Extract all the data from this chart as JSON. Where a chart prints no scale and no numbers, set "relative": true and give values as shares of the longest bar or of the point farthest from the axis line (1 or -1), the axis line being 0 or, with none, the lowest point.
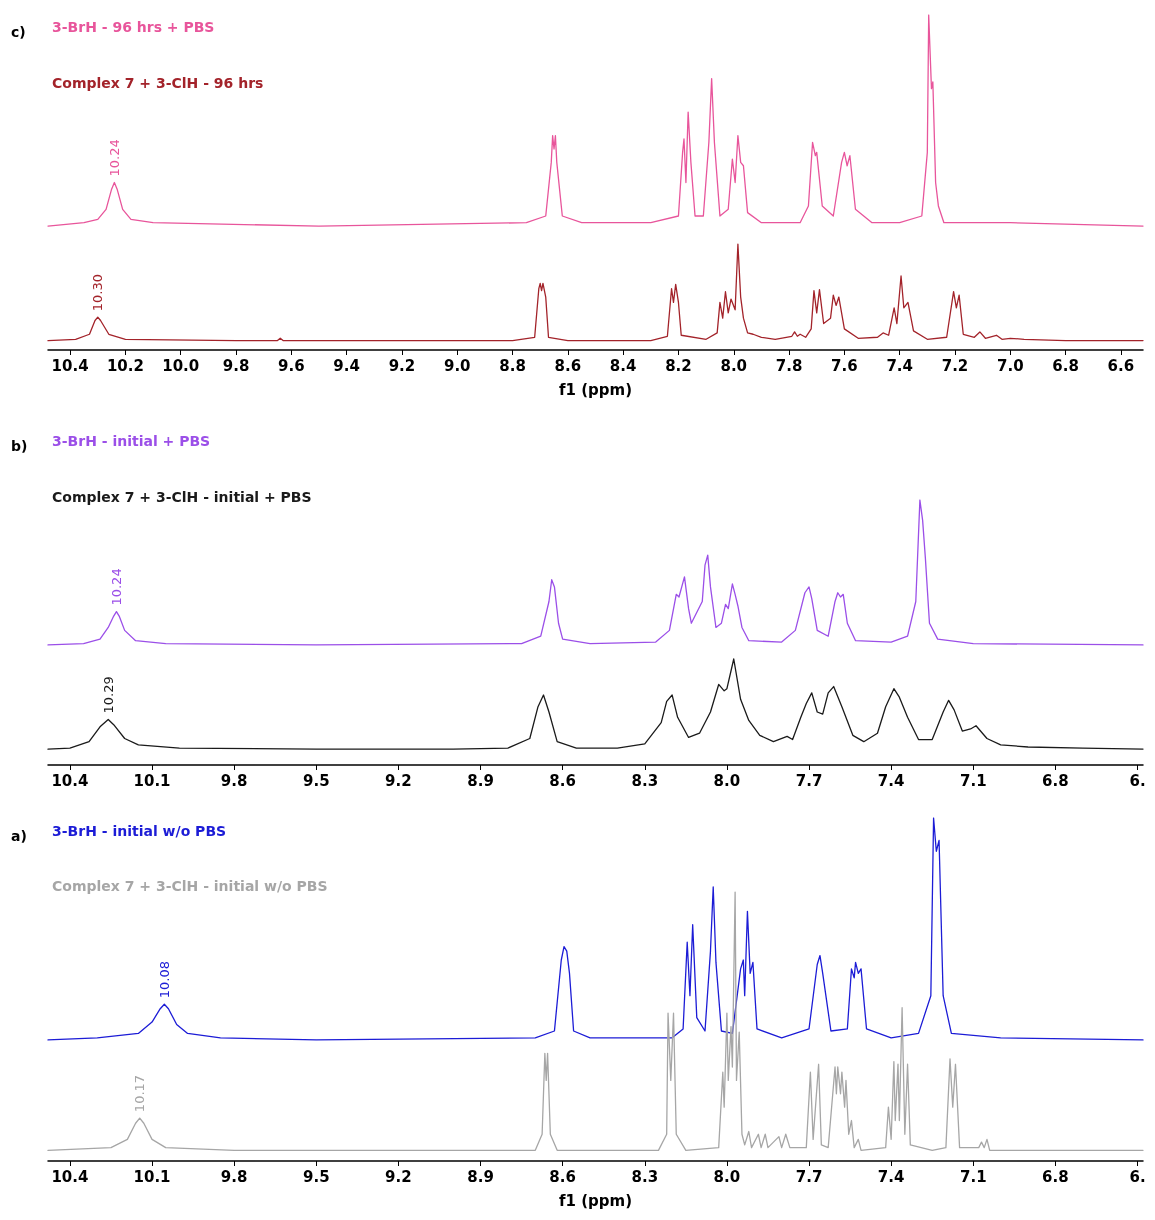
{
  "chart_data": [
    {
      "type": "line",
      "title": "c)",
      "relative": true,
      "xlim": [
        10.48,
        6.52
      ],
      "xlabel": "f1 (ppm)",
      "marker": "none",
      "line_style": "solid",
      "xticks": [
        10.4,
        10.2,
        {
          "value": 10,
          "label": "10.0"
        },
        9.8,
        9.6,
        9.4,
        9.2,
        {
          "value": 9,
          "label": "9.0"
        },
        8.8,
        8.6,
        8.4,
        8.2,
        {
          "value": 8,
          "label": "8.0"
        },
        7.8,
        7.6,
        7.4,
        7.2,
        {
          "value": 7,
          "label": "7.0"
        },
        6.8,
        6.6
      ],
      "annotations": [
        {
          "text": "10.24",
          "x": 10.24,
          "y": 0.5
        },
        {
          "text": "10.30",
          "x": 10.3,
          "y": 0.098
        }
      ],
      "series": [
        {
          "name": "3-BrH - 96 hrs + PBS",
          "color": "#e8559b",
          "x": [
            10.48,
            10.35,
            10.3,
            10.27,
            10.25,
            10.24,
            10.23,
            10.21,
            10.18,
            10.1,
            9.5,
            8.75,
            8.68,
            8.66,
            8.655,
            8.65,
            8.645,
            8.64,
            8.62,
            8.55,
            8.3,
            8.2,
            8.185,
            8.18,
            8.173,
            8.165,
            8.155,
            8.14,
            8.11,
            8.09,
            8.08,
            8.07,
            8.05,
            8.02,
            8.005,
            7.995,
            7.985,
            7.975,
            7.965,
            7.95,
            7.9,
            7.76,
            7.73,
            7.715,
            7.705,
            7.7,
            7.68,
            7.64,
            7.61,
            7.6,
            7.59,
            7.58,
            7.56,
            7.5,
            7.4,
            7.32,
            7.3,
            7.295,
            7.285,
            7.28,
            7.27,
            7.26,
            7.24,
            7.0,
            6.52
          ],
          "values": [
            0.37,
            0.38,
            0.39,
            0.42,
            0.48,
            0.5,
            0.48,
            0.42,
            0.39,
            0.38,
            0.37,
            0.38,
            0.4,
            0.56,
            0.64,
            0.6,
            0.64,
            0.56,
            0.4,
            0.38,
            0.38,
            0.4,
            0.59,
            0.63,
            0.5,
            0.71,
            0.56,
            0.4,
            0.4,
            0.62,
            0.81,
            0.62,
            0.4,
            0.42,
            0.57,
            0.5,
            0.64,
            0.56,
            0.55,
            0.41,
            0.38,
            0.38,
            0.43,
            0.62,
            0.58,
            0.59,
            0.43,
            0.4,
            0.56,
            0.59,
            0.55,
            0.58,
            0.42,
            0.38,
            0.38,
            0.4,
            0.59,
            1.0,
            0.78,
            0.8,
            0.5,
            0.43,
            0.38,
            0.38,
            0.37
          ]
        },
        {
          "name": "Complex 7 + 3-ClH - 96 hrs",
          "color": "#a3232a",
          "x": [
            10.48,
            10.38,
            10.33,
            10.31,
            10.3,
            10.29,
            10.26,
            10.2,
            9.8,
            9.65,
            9.64,
            9.63,
            8.8,
            8.72,
            8.705,
            8.7,
            8.695,
            8.69,
            8.68,
            8.67,
            8.6,
            8.3,
            8.24,
            8.225,
            8.218,
            8.21,
            8.2,
            8.19,
            8.1,
            8.06,
            8.05,
            8.04,
            8.03,
            8.02,
            8.01,
            7.995,
            7.985,
            7.975,
            7.965,
            7.95,
            7.93,
            7.9,
            7.85,
            7.79,
            7.78,
            7.77,
            7.76,
            7.74,
            7.72,
            7.71,
            7.7,
            7.69,
            7.675,
            7.65,
            7.64,
            7.63,
            7.62,
            7.6,
            7.55,
            7.48,
            7.46,
            7.44,
            7.42,
            7.41,
            7.395,
            7.385,
            7.37,
            7.35,
            7.3,
            7.23,
            7.205,
            7.195,
            7.185,
            7.17,
            7.13,
            7.11,
            7.09,
            7.05,
            7.03,
            7.0,
            6.95,
            6.8,
            6.52
          ],
          "values": [
            0.028,
            0.032,
            0.047,
            0.088,
            0.098,
            0.088,
            0.047,
            0.032,
            0.028,
            0.028,
            0.035,
            0.028,
            0.028,
            0.038,
            0.183,
            0.199,
            0.177,
            0.199,
            0.158,
            0.038,
            0.028,
            0.028,
            0.041,
            0.183,
            0.142,
            0.196,
            0.142,
            0.044,
            0.032,
            0.051,
            0.142,
            0.095,
            0.174,
            0.111,
            0.152,
            0.12,
            0.316,
            0.158,
            0.095,
            0.051,
            0.047,
            0.038,
            0.032,
            0.041,
            0.054,
            0.041,
            0.047,
            0.038,
            0.063,
            0.177,
            0.111,
            0.18,
            0.079,
            0.095,
            0.164,
            0.133,
            0.158,
            0.063,
            0.035,
            0.038,
            0.051,
            0.044,
            0.126,
            0.079,
            0.221,
            0.126,
            0.142,
            0.057,
            0.032,
            0.038,
            0.174,
            0.126,
            0.164,
            0.047,
            0.038,
            0.054,
            0.035,
            0.044,
            0.032,
            0.035,
            0.032,
            0.028,
            0.028
          ]
        }
      ]
    },
    {
      "type": "line",
      "title": "b)",
      "relative": true,
      "xlim": [
        10.48,
        6.48
      ],
      "marker": "none",
      "line_style": "solid",
      "xticks": [
        10.4,
        10.1,
        9.8,
        9.5,
        9.2,
        8.9,
        8.6,
        8.3,
        {
          "value": 8,
          "label": "8.0"
        },
        7.7,
        7.4,
        7.1,
        6.8,
        {
          "value": 6.5,
          "label": "6."
        }
      ],
      "annotations": [
        {
          "text": "10.24",
          "x": 10.23,
          "y": 0.579
        },
        {
          "text": "10.29",
          "x": 10.26,
          "y": 0.172
        }
      ],
      "series": [
        {
          "name": "3-BrH - initial + PBS",
          "color": "#9b4fe8",
          "x": [
            10.48,
            10.35,
            10.29,
            10.26,
            10.24,
            10.23,
            10.22,
            10.2,
            10.16,
            10.05,
            9.5,
            8.75,
            8.68,
            8.65,
            8.64,
            8.63,
            8.615,
            8.6,
            8.5,
            8.26,
            8.21,
            8.185,
            8.175,
            8.155,
            8.14,
            8.13,
            8.09,
            8.08,
            8.07,
            8.06,
            8.04,
            8.02,
            8.005,
            7.995,
            7.98,
            7.97,
            7.96,
            7.945,
            7.92,
            7.8,
            7.75,
            7.715,
            7.7,
            7.69,
            7.67,
            7.63,
            7.605,
            7.595,
            7.585,
            7.575,
            7.56,
            7.53,
            7.4,
            7.34,
            7.31,
            7.295,
            7.285,
            7.275,
            7.26,
            7.23,
            7.1,
            6.48
          ],
          "values": [
            0.453,
            0.458,
            0.475,
            0.519,
            0.562,
            0.579,
            0.562,
            0.508,
            0.469,
            0.458,
            0.453,
            0.458,
            0.486,
            0.617,
            0.699,
            0.672,
            0.535,
            0.475,
            0.458,
            0.464,
            0.508,
            0.644,
            0.634,
            0.71,
            0.59,
            0.535,
            0.617,
            0.754,
            0.792,
            0.672,
            0.519,
            0.535,
            0.606,
            0.59,
            0.683,
            0.644,
            0.601,
            0.519,
            0.469,
            0.464,
            0.508,
            0.65,
            0.672,
            0.628,
            0.508,
            0.486,
            0.617,
            0.65,
            0.634,
            0.644,
            0.535,
            0.469,
            0.464,
            0.486,
            0.617,
            1.0,
            0.923,
            0.781,
            0.535,
            0.475,
            0.458,
            0.453
          ]
        },
        {
          "name": "Complex 7 + 3-ClH - initial + PBS",
          "color": "#1a1a1a",
          "x": [
            10.48,
            10.4,
            10.33,
            10.29,
            10.26,
            10.24,
            10.2,
            10.15,
            10.0,
            9.5,
            9.0,
            8.8,
            8.72,
            8.69,
            8.67,
            8.65,
            8.62,
            8.55,
            8.4,
            8.3,
            8.24,
            8.22,
            8.2,
            8.18,
            8.14,
            8.1,
            8.06,
            8.03,
            8.01,
            8.0,
            7.975,
            7.95,
            7.92,
            7.88,
            7.83,
            7.78,
            7.76,
            7.73,
            7.71,
            7.69,
            7.67,
            7.65,
            7.63,
            7.61,
            7.58,
            7.54,
            7.5,
            7.45,
            7.42,
            7.39,
            7.37,
            7.34,
            7.3,
            7.25,
            7.21,
            7.19,
            7.17,
            7.14,
            7.11,
            7.09,
            7.05,
            7.0,
            6.9,
            6.7,
            6.48
          ],
          "values": [
            0.06,
            0.064,
            0.088,
            0.144,
            0.172,
            0.152,
            0.1,
            0.076,
            0.064,
            0.06,
            0.06,
            0.064,
            0.1,
            0.22,
            0.264,
            0.2,
            0.088,
            0.064,
            0.064,
            0.08,
            0.16,
            0.24,
            0.264,
            0.18,
            0.104,
            0.12,
            0.2,
            0.304,
            0.28,
            0.288,
            0.4,
            0.248,
            0.168,
            0.112,
            0.088,
            0.108,
            0.096,
            0.18,
            0.232,
            0.272,
            0.2,
            0.192,
            0.272,
            0.296,
            0.22,
            0.112,
            0.088,
            0.12,
            0.22,
            0.288,
            0.256,
            0.18,
            0.096,
            0.096,
            0.2,
            0.244,
            0.208,
            0.128,
            0.136,
            0.148,
            0.1,
            0.076,
            0.068,
            0.064,
            0.06
          ]
        }
      ]
    },
    {
      "type": "line",
      "title": "a)",
      "relative": true,
      "xlim": [
        10.48,
        6.48
      ],
      "xlabel": "f1 (ppm)",
      "marker": "none",
      "line_style": "solid",
      "xticks": [
        10.4,
        10.1,
        9.8,
        9.5,
        9.2,
        8.9,
        8.6,
        8.3,
        {
          "value": 8,
          "label": "8.0"
        },
        7.7,
        7.4,
        7.1,
        6.8,
        {
          "value": 6.5,
          "label": "6."
        }
      ],
      "annotations": [
        {
          "text": "10.08",
          "x": 10.055,
          "y": 0.457
        },
        {
          "text": "10.17",
          "x": 10.145,
          "y": 0.125
        }
      ],
      "series": [
        {
          "name": "3-BrH - initial w/o PBS",
          "color": "#1c1cd6",
          "x": [
            10.48,
            10.3,
            10.15,
            10.1,
            10.07,
            10.055,
            10.04,
            10.01,
            9.97,
            9.85,
            9.5,
            8.7,
            8.63,
            8.605,
            8.595,
            8.585,
            8.575,
            8.56,
            8.5,
            8.2,
            8.16,
            8.145,
            8.135,
            8.125,
            8.11,
            8.08,
            8.06,
            8.05,
            8.04,
            8.02,
            7.98,
            7.95,
            7.94,
            7.935,
            7.925,
            7.915,
            7.905,
            7.89,
            7.8,
            7.7,
            7.67,
            7.66,
            7.65,
            7.62,
            7.56,
            7.545,
            7.535,
            7.53,
            7.52,
            7.51,
            7.49,
            7.4,
            7.3,
            7.255,
            7.245,
            7.235,
            7.225,
            7.21,
            7.18,
            7.0,
            6.48
          ],
          "values": [
            0.353,
            0.359,
            0.372,
            0.405,
            0.444,
            0.457,
            0.444,
            0.398,
            0.372,
            0.359,
            0.353,
            0.359,
            0.379,
            0.586,
            0.625,
            0.612,
            0.547,
            0.379,
            0.359,
            0.359,
            0.385,
            0.638,
            0.482,
            0.689,
            0.418,
            0.379,
            0.612,
            0.799,
            0.579,
            0.379,
            0.372,
            0.56,
            0.586,
            0.482,
            0.728,
            0.547,
            0.579,
            0.385,
            0.359,
            0.385,
            0.573,
            0.599,
            0.547,
            0.379,
            0.385,
            0.56,
            0.534,
            0.579,
            0.547,
            0.56,
            0.385,
            0.359,
            0.372,
            0.482,
            1.0,
            0.903,
            0.935,
            0.482,
            0.372,
            0.359,
            0.353
          ]
        },
        {
          "name": "Complex 7 + 3-ClH - initial w/o PBS",
          "color": "#a6a6a6",
          "x": [
            10.48,
            10.25,
            10.19,
            10.16,
            10.145,
            10.13,
            10.1,
            10.05,
            9.8,
            8.7,
            8.675,
            8.665,
            8.66,
            8.655,
            8.645,
            8.62,
            8.25,
            8.22,
            8.215,
            8.205,
            8.195,
            8.185,
            8.15,
            8.03,
            8.015,
            8.01,
            8.0,
            7.995,
            7.985,
            7.98,
            7.97,
            7.965,
            7.955,
            7.945,
            7.935,
            7.92,
            7.91,
            7.885,
            7.875,
            7.86,
            7.85,
            7.81,
            7.8,
            7.785,
            7.77,
            7.71,
            7.695,
            7.685,
            7.665,
            7.655,
            7.63,
            7.605,
            7.6,
            7.595,
            7.585,
            7.58,
            7.57,
            7.565,
            7.555,
            7.545,
            7.535,
            7.52,
            7.51,
            7.42,
            7.41,
            7.4,
            7.39,
            7.385,
            7.375,
            7.37,
            7.36,
            7.35,
            7.34,
            7.33,
            7.25,
            7.2,
            7.185,
            7.175,
            7.165,
            7.15,
            7.08,
            7.07,
            7.06,
            7.05,
            7.04,
            6.85,
            6.48
          ],
          "values": [
            0.031,
            0.039,
            0.063,
            0.11,
            0.125,
            0.11,
            0.063,
            0.039,
            0.031,
            0.031,
            0.078,
            0.314,
            0.235,
            0.314,
            0.078,
            0.031,
            0.031,
            0.078,
            0.431,
            0.235,
            0.431,
            0.078,
            0.031,
            0.039,
            0.259,
            0.157,
            0.431,
            0.235,
            0.392,
            0.274,
            0.784,
            0.235,
            0.376,
            0.078,
            0.047,
            0.086,
            0.039,
            0.078,
            0.039,
            0.078,
            0.039,
            0.071,
            0.039,
            0.078,
            0.039,
            0.039,
            0.259,
            0.063,
            0.282,
            0.047,
            0.039,
            0.274,
            0.196,
            0.274,
            0.196,
            0.259,
            0.157,
            0.235,
            0.078,
            0.118,
            0.039,
            0.063,
            0.031,
            0.039,
            0.157,
            0.063,
            0.29,
            0.118,
            0.282,
            0.118,
            0.447,
            0.078,
            0.282,
            0.047,
            0.031,
            0.039,
            0.298,
            0.157,
            0.282,
            0.039,
            0.039,
            0.055,
            0.039,
            0.063,
            0.031,
            0.031,
            0.031
          ]
        }
      ]
    }
  ]
}
